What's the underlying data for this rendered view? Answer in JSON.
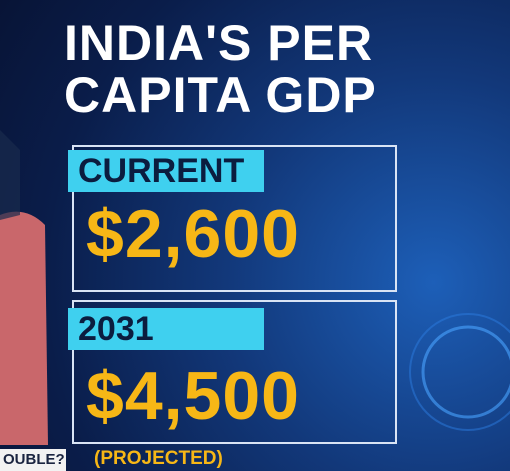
{
  "title": {
    "line1": "INDIA'S PER",
    "line2": "CAPITA GDP"
  },
  "panels": [
    {
      "label": "CURRENT",
      "value": "$2,600"
    },
    {
      "label": "2031",
      "value": "$4,500",
      "note": "(PROJECTED)"
    }
  ],
  "ticker": {
    "text": "OUBLE?"
  }
}
